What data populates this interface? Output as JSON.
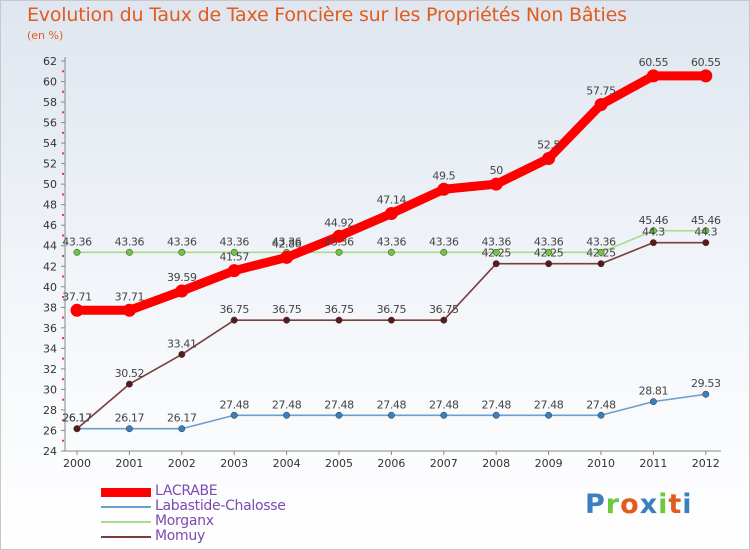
{
  "chart_data": {
    "type": "line",
    "title": "Evolution du Taux de Taxe Foncière sur les Propriétés Non Bâties",
    "ylabel": "(en %)",
    "xlabel": "",
    "categories": [
      "2000",
      "2001",
      "2002",
      "2003",
      "2004",
      "2005",
      "2006",
      "2007",
      "2008",
      "2009",
      "2010",
      "2011",
      "2012"
    ],
    "ylim": [
      24,
      62
    ],
    "yticks": [
      24,
      26,
      28,
      30,
      32,
      34,
      36,
      38,
      40,
      42,
      44,
      46,
      48,
      50,
      52,
      54,
      56,
      58,
      60,
      62
    ],
    "grid": false,
    "legend_position": "bottom-left",
    "series": [
      {
        "name": "LACRABE",
        "color": "#ff0000",
        "point_color": "#ff0000",
        "width": "thick",
        "values": [
          37.71,
          37.71,
          39.59,
          41.57,
          42.86,
          44.92,
          47.14,
          49.5,
          50,
          52.5,
          57.75,
          60.55,
          60.55
        ],
        "labels": [
          "37.71",
          "37.71",
          "39.59",
          "41.57",
          "42.86",
          "44.92",
          "47.14",
          "49.5",
          "50",
          "52.5",
          "57.75",
          "60.55",
          "60.55"
        ]
      },
      {
        "name": "Labastide-Chalosse",
        "color": "#6a9ed0",
        "point_color": "#3a7fc0",
        "width": "thin",
        "values": [
          26.17,
          26.17,
          26.17,
          27.48,
          27.48,
          27.48,
          27.48,
          27.48,
          27.48,
          27.48,
          27.48,
          28.81,
          29.53
        ],
        "labels": [
          "26.17",
          "26.17",
          "26.17",
          "27.48",
          "27.48",
          "27.48",
          "27.48",
          "27.48",
          "27.48",
          "27.48",
          "27.48",
          "28.81",
          "29.53"
        ]
      },
      {
        "name": "Morganx",
        "color": "#a6dc8c",
        "point_color": "#6cc83c",
        "width": "thin",
        "values": [
          43.36,
          43.36,
          43.36,
          43.36,
          43.36,
          43.36,
          43.36,
          43.36,
          43.36,
          43.36,
          43.36,
          45.46,
          45.46
        ],
        "labels": [
          "43.36",
          "43.36",
          "43.36",
          "43.36",
          "43.36",
          "43.36",
          "43.36",
          "43.36",
          "43.36",
          "43.36",
          "43.36",
          "45.46",
          "45.46"
        ]
      },
      {
        "name": "Momuy",
        "color": "#7a3c3c",
        "point_color": "#5a1a1a",
        "width": "thin",
        "values": [
          26.17,
          30.52,
          33.41,
          36.75,
          36.75,
          36.75,
          36.75,
          36.75,
          42.25,
          42.25,
          42.25,
          44.3,
          44.3
        ],
        "labels": [
          "26.17",
          "30.52",
          "33.41",
          "36.75",
          "36.75",
          "36.75",
          "36.75",
          "36.75",
          "42.25",
          "42.25",
          "42.25",
          "44.3",
          "44.3"
        ]
      }
    ]
  },
  "brand": {
    "letters": [
      "P",
      "r",
      "o",
      "x",
      "i",
      "t",
      "i"
    ],
    "colors": [
      "#3a7fc0",
      "#6cc83c",
      "#e25a1c",
      "#3a7fc0",
      "#6cc83c",
      "#e25a1c",
      "#3a7fc0"
    ]
  }
}
